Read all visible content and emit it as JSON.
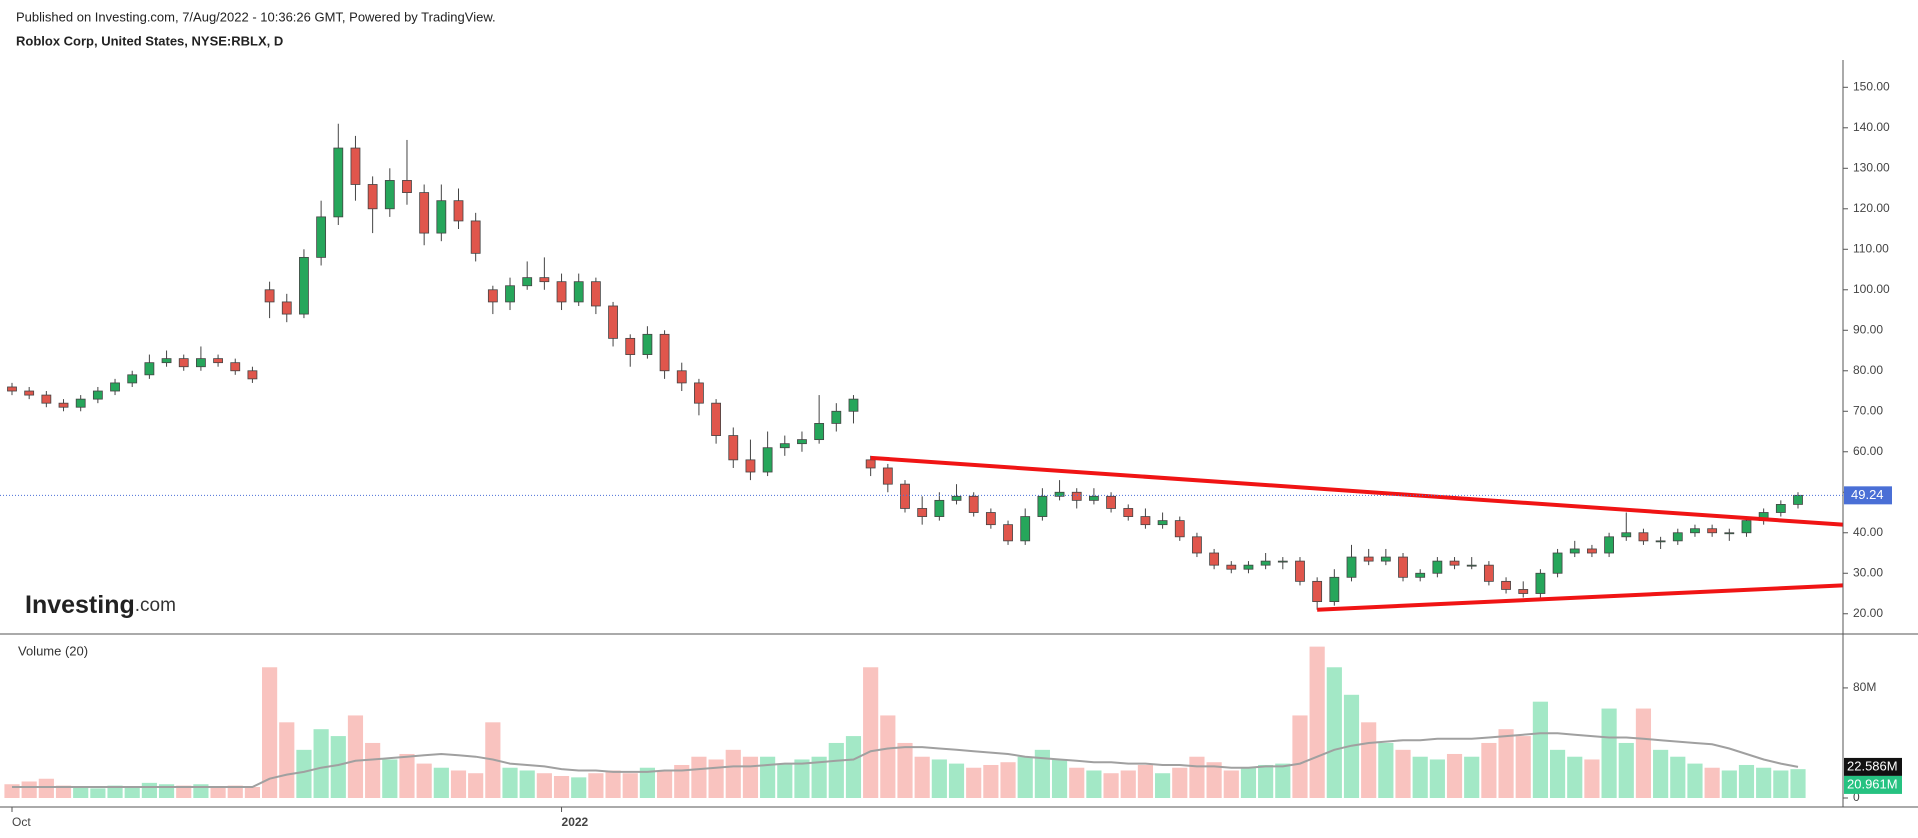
{
  "header": {
    "published": "Published on Investing.com, 7/Aug/2022 - 10:36:26 GMT, Powered by TradingView.",
    "symbol": "Roblox Corp, United States, NYSE:RBLX, D",
    "logo": "Investing",
    "logo_suffix": ".com"
  },
  "chart_data": {
    "type": "candlestick",
    "candles": [
      [
        76,
        77,
        74,
        75
      ],
      [
        75,
        76,
        73,
        74
      ],
      [
        74,
        75,
        71,
        72
      ],
      [
        72,
        73,
        70,
        71
      ],
      [
        71,
        74,
        70,
        73
      ],
      [
        73,
        76,
        72,
        75
      ],
      [
        75,
        78,
        74,
        77
      ],
      [
        77,
        80,
        76,
        79
      ],
      [
        79,
        84,
        78,
        82
      ],
      [
        82,
        85,
        81,
        83
      ],
      [
        83,
        84,
        80,
        81
      ],
      [
        81,
        86,
        80,
        83
      ],
      [
        83,
        84,
        81,
        82
      ],
      [
        82,
        83,
        79,
        80
      ],
      [
        80,
        81,
        77,
        78
      ],
      [
        100,
        102,
        93,
        97
      ],
      [
        97,
        99,
        92,
        94
      ],
      [
        94,
        110,
        93,
        108
      ],
      [
        108,
        122,
        106,
        118
      ],
      [
        118,
        141,
        116,
        135
      ],
      [
        135,
        138,
        122,
        126
      ],
      [
        126,
        128,
        114,
        120
      ],
      [
        120,
        130,
        118,
        127
      ],
      [
        127,
        137,
        121,
        124
      ],
      [
        124,
        126,
        111,
        114
      ],
      [
        114,
        126,
        112,
        122
      ],
      [
        122,
        125,
        115,
        117
      ],
      [
        117,
        119,
        107,
        109
      ],
      [
        100,
        101,
        94,
        97
      ],
      [
        97,
        103,
        95,
        101
      ],
      [
        101,
        107,
        100,
        103
      ],
      [
        103,
        108,
        100,
        102
      ],
      [
        102,
        104,
        95,
        97
      ],
      [
        97,
        104,
        96,
        102
      ],
      [
        102,
        103,
        94,
        96
      ],
      [
        96,
        97,
        86,
        88
      ],
      [
        88,
        89,
        81,
        84
      ],
      [
        84,
        91,
        83,
        89
      ],
      [
        89,
        90,
        78,
        80
      ],
      [
        80,
        82,
        75,
        77
      ],
      [
        77,
        78,
        69,
        72
      ],
      [
        72,
        73,
        62,
        64
      ],
      [
        64,
        66,
        56,
        58
      ],
      [
        58,
        63,
        53,
        55
      ],
      [
        55,
        65,
        54,
        61
      ],
      [
        61,
        64,
        59,
        62
      ],
      [
        62,
        65,
        60,
        63
      ],
      [
        63,
        74,
        62,
        67
      ],
      [
        67,
        72,
        65,
        70
      ],
      [
        70,
        74,
        67,
        73
      ],
      [
        58,
        59,
        54,
        56
      ],
      [
        56,
        57,
        50,
        52
      ],
      [
        52,
        53,
        45,
        46
      ],
      [
        46,
        49,
        42,
        44
      ],
      [
        44,
        50,
        43,
        48
      ],
      [
        48,
        52,
        47,
        49
      ],
      [
        49,
        50,
        44,
        45
      ],
      [
        45,
        46,
        41,
        42
      ],
      [
        42,
        43,
        37,
        38
      ],
      [
        38,
        46,
        37,
        44
      ],
      [
        44,
        51,
        43,
        49
      ],
      [
        49,
        53,
        48,
        50
      ],
      [
        50,
        51,
        46,
        48
      ],
      [
        48,
        51,
        47,
        49
      ],
      [
        49,
        50,
        45,
        46
      ],
      [
        46,
        47,
        43,
        44
      ],
      [
        44,
        46,
        41,
        42
      ],
      [
        42,
        45,
        41,
        43
      ],
      [
        43,
        44,
        38,
        39
      ],
      [
        39,
        40,
        34,
        35
      ],
      [
        35,
        36,
        31,
        32
      ],
      [
        32,
        33,
        30,
        31
      ],
      [
        31,
        33,
        30,
        32
      ],
      [
        32,
        35,
        31,
        33
      ],
      [
        33,
        34,
        31,
        33
      ],
      [
        33,
        34,
        27,
        28
      ],
      [
        28,
        29,
        21,
        23
      ],
      [
        23,
        31,
        22,
        29
      ],
      [
        29,
        37,
        28,
        34
      ],
      [
        34,
        36,
        32,
        33
      ],
      [
        33,
        36,
        32,
        34
      ],
      [
        34,
        35,
        28,
        29
      ],
      [
        29,
        31,
        28,
        30
      ],
      [
        30,
        34,
        29,
        33
      ],
      [
        33,
        34,
        31,
        32
      ],
      [
        32,
        34,
        31,
        32
      ],
      [
        32,
        33,
        27,
        28
      ],
      [
        28,
        29,
        25,
        26
      ],
      [
        26,
        28,
        24,
        25
      ],
      [
        25,
        31,
        24,
        30
      ],
      [
        30,
        36,
        29,
        35
      ],
      [
        35,
        38,
        34,
        36
      ],
      [
        36,
        37,
        34,
        35
      ],
      [
        35,
        40,
        34,
        39
      ],
      [
        39,
        45,
        38,
        40
      ],
      [
        40,
        41,
        37,
        38
      ],
      [
        38,
        39,
        36,
        38
      ],
      [
        38,
        41,
        37,
        40
      ],
      [
        40,
        42,
        39,
        41
      ],
      [
        41,
        42,
        39,
        40
      ],
      [
        40,
        41,
        38,
        40
      ],
      [
        40,
        44,
        39,
        43
      ],
      [
        43,
        46,
        42,
        45
      ],
      [
        45,
        48,
        44,
        47
      ],
      [
        47,
        50,
        46,
        49.24
      ]
    ],
    "ylim": [
      15,
      156
    ],
    "yticks": [
      {
        "value": 20,
        "label": "20.00"
      },
      {
        "value": 30,
        "label": "30.00"
      },
      {
        "value": 40,
        "label": "40.00"
      },
      {
        "value": 50,
        "label": "50.00"
      },
      {
        "value": 60,
        "label": "60.00"
      },
      {
        "value": 70,
        "label": "70.00"
      },
      {
        "value": 80,
        "label": "80.00"
      },
      {
        "value": 90,
        "label": "90.00"
      },
      {
        "value": 100,
        "label": "100.00"
      },
      {
        "value": 110,
        "label": "110.00"
      },
      {
        "value": 120,
        "label": "120.00"
      },
      {
        "value": 130,
        "label": "130.00"
      },
      {
        "value": 140,
        "label": "140.00"
      },
      {
        "value": 150,
        "label": "150.00"
      }
    ],
    "xticks": [
      {
        "value": 0,
        "label": "Oct"
      },
      {
        "value": 32,
        "label": "2022"
      }
    ],
    "up_color": "#26a65b",
    "down_color": "#e0564c",
    "trendlines": [
      [
        [
          50,
          58.5
        ],
        [
          106.6,
          42
        ]
      ],
      [
        [
          76,
          21
        ],
        [
          106.6,
          27
        ]
      ]
    ],
    "trendline_color": "#f01414",
    "last_line_color": "#4a6fd6",
    "volume": {
      "title": "Volume (20)",
      "ylim": [
        0,
        117
      ],
      "yticks": [
        0,
        {
          "value": 80,
          "label": "80M"
        }
      ],
      "values": [
        10,
        12,
        14,
        9,
        8,
        7,
        9,
        8,
        11,
        10,
        9,
        10,
        8,
        9,
        8,
        95,
        55,
        35,
        50,
        45,
        60,
        40,
        28,
        32,
        25,
        22,
        20,
        18,
        55,
        22,
        20,
        18,
        16,
        15,
        18,
        20,
        18,
        22,
        20,
        24,
        30,
        28,
        35,
        30,
        30,
        25,
        28,
        30,
        40,
        45,
        95,
        60,
        40,
        30,
        28,
        25,
        22,
        24,
        26,
        30,
        35,
        28,
        22,
        20,
        18,
        20,
        24,
        18,
        22,
        30,
        26,
        20,
        22,
        24,
        25,
        60,
        110,
        95,
        75,
        55,
        40,
        35,
        30,
        28,
        32,
        30,
        40,
        50,
        45,
        70,
        35,
        30,
        28,
        65,
        40,
        65,
        35,
        30,
        25,
        22,
        20,
        24,
        22,
        20,
        20.961
      ],
      "value_labels": {
        "104": "20.961M"
      },
      "up_color": "#a3e8c6",
      "down_color": "#f9c3bf",
      "ma": {
        "color": "#a0a0a0",
        "values": [
          8,
          8,
          8,
          8,
          8,
          8,
          8,
          8,
          8,
          8,
          8,
          8,
          8,
          8,
          8,
          14,
          17,
          19,
          22,
          24,
          27,
          28,
          29,
          30,
          31,
          32,
          31,
          30,
          28,
          25,
          24,
          23,
          21,
          20,
          20,
          19,
          19,
          19,
          20,
          20,
          21,
          22,
          23,
          23,
          24,
          25,
          25,
          26,
          27,
          28,
          34,
          36,
          37,
          37,
          36,
          35,
          34,
          33,
          32,
          30,
          29,
          28,
          27,
          26,
          26,
          25,
          25,
          24,
          24,
          23,
          23,
          22,
          22,
          23,
          23,
          25,
          30,
          35,
          38,
          40,
          41,
          42,
          42,
          43,
          43,
          43,
          44,
          45,
          46,
          47,
          47,
          46,
          45,
          44,
          44,
          43,
          42,
          41,
          40,
          39,
          36,
          32,
          28,
          25,
          22.586
        ],
        "value_labels": {
          "104": "22.586M"
        }
      }
    }
  }
}
